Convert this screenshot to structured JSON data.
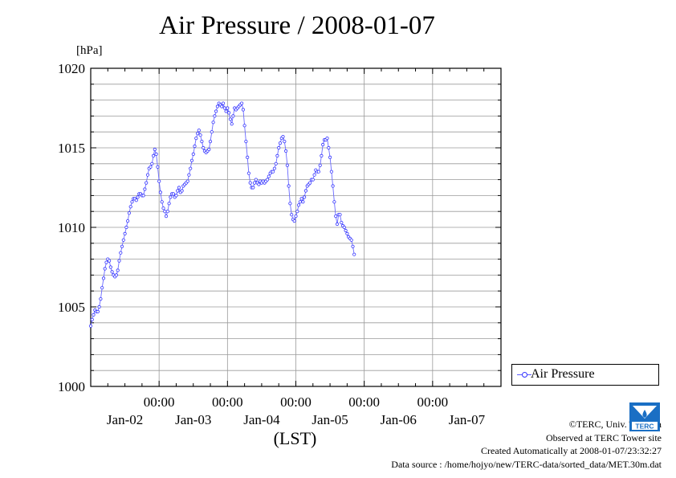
{
  "chart_data": {
    "type": "line",
    "title": "Air Pressure / 2008-01-07",
    "ylabel": "[hPa]",
    "xlabel": "(LST)",
    "ylim": [
      1000,
      1020
    ],
    "yticks": [
      1000,
      1005,
      1010,
      1015,
      1020
    ],
    "ytick_labels": [
      "1000",
      "1005",
      "1010",
      "1015",
      "1020"
    ],
    "x_range_days": [
      0,
      6
    ],
    "xtick_positions_days": [
      1,
      2,
      3,
      4,
      5
    ],
    "xtick_time_labels": [
      "00:00",
      "00:00",
      "00:00",
      "00:00",
      "00:00"
    ],
    "x_date_labels": [
      "Jan-02",
      "Jan-03",
      "Jan-04",
      "Jan-05",
      "Jan-06",
      "Jan-07"
    ],
    "grid": true,
    "legend_position": "right",
    "series": [
      {
        "name": "Air Pressure",
        "color": "#3232ff",
        "interval_minutes": 30,
        "x_start": "2008-01-01 00:00",
        "values": [
          1003.8,
          1004.2,
          1004.5,
          1004.8,
          1004.7,
          1004.7,
          1005.0,
          1005.5,
          1006.2,
          1006.8,
          1007.4,
          1007.8,
          1008.0,
          1007.9,
          1007.5,
          1007.2,
          1007.0,
          1006.9,
          1007.0,
          1007.3,
          1007.9,
          1008.4,
          1008.8,
          1009.2,
          1009.6,
          1010.0,
          1010.4,
          1010.9,
          1011.3,
          1011.6,
          1011.8,
          1011.8,
          1011.7,
          1011.9,
          1012.1,
          1012.1,
          1012.0,
          1012.0,
          1012.4,
          1012.8,
          1013.3,
          1013.7,
          1013.8,
          1014.0,
          1014.5,
          1014.9,
          1014.6,
          1013.8,
          1012.9,
          1012.2,
          1011.6,
          1011.2,
          1011.0,
          1010.7,
          1011.0,
          1011.5,
          1011.9,
          1012.1,
          1012.1,
          1011.9,
          1012.0,
          1012.3,
          1012.5,
          1012.2,
          1012.3,
          1012.6,
          1012.7,
          1012.8,
          1012.9,
          1013.3,
          1013.7,
          1014.2,
          1014.6,
          1015.1,
          1015.6,
          1015.9,
          1016.1,
          1015.8,
          1015.4,
          1015.0,
          1014.8,
          1014.7,
          1014.8,
          1014.9,
          1015.4,
          1016.0,
          1016.6,
          1017.0,
          1017.3,
          1017.6,
          1017.8,
          1017.7,
          1017.6,
          1017.8,
          1017.5,
          1017.3,
          1017.5,
          1017.2,
          1016.8,
          1016.5,
          1017.0,
          1017.5,
          1017.4,
          1017.5,
          1017.6,
          1017.7,
          1017.8,
          1017.4,
          1016.4,
          1015.4,
          1014.4,
          1013.4,
          1012.8,
          1012.5,
          1012.5,
          1012.8,
          1013.0,
          1012.8,
          1012.7,
          1012.9,
          1012.8,
          1012.9,
          1012.8,
          1012.9,
          1013.0,
          1013.2,
          1013.4,
          1013.5,
          1013.5,
          1013.7,
          1014.0,
          1014.5,
          1015.0,
          1015.3,
          1015.6,
          1015.7,
          1015.4,
          1014.8,
          1013.9,
          1012.6,
          1011.5,
          1010.8,
          1010.5,
          1010.4,
          1010.7,
          1011.0,
          1011.4,
          1011.6,
          1011.8,
          1011.6,
          1011.9,
          1012.3,
          1012.6,
          1012.7,
          1012.8,
          1013.0,
          1013.0,
          1013.3,
          1013.6,
          1013.5,
          1013.5,
          1013.9,
          1014.5,
          1015.2,
          1015.5,
          1015.5,
          1015.6,
          1015.0,
          1014.4,
          1013.5,
          1012.6,
          1011.6,
          1010.7,
          1010.2,
          1010.8,
          1010.8,
          1010.3,
          1010.1,
          1010.0,
          1009.8,
          1009.6,
          1009.4,
          1009.3,
          1009.2,
          1008.8,
          1008.3
        ]
      }
    ]
  },
  "legend": {
    "label": "Air Pressure"
  },
  "credits": {
    "line1": "©TERC, Univ. Tsukuba",
    "line2": "Observed at TERC Tower site",
    "line3": "Created Automatically at 2008-01-07/23:32:27",
    "line4": "Data source : /home/hojyo/new/TERC-data/sorted_data/MET.30m.dat"
  },
  "logo": {
    "name": "terc-logo",
    "text": "TERC",
    "color": "#1a6fc4"
  }
}
